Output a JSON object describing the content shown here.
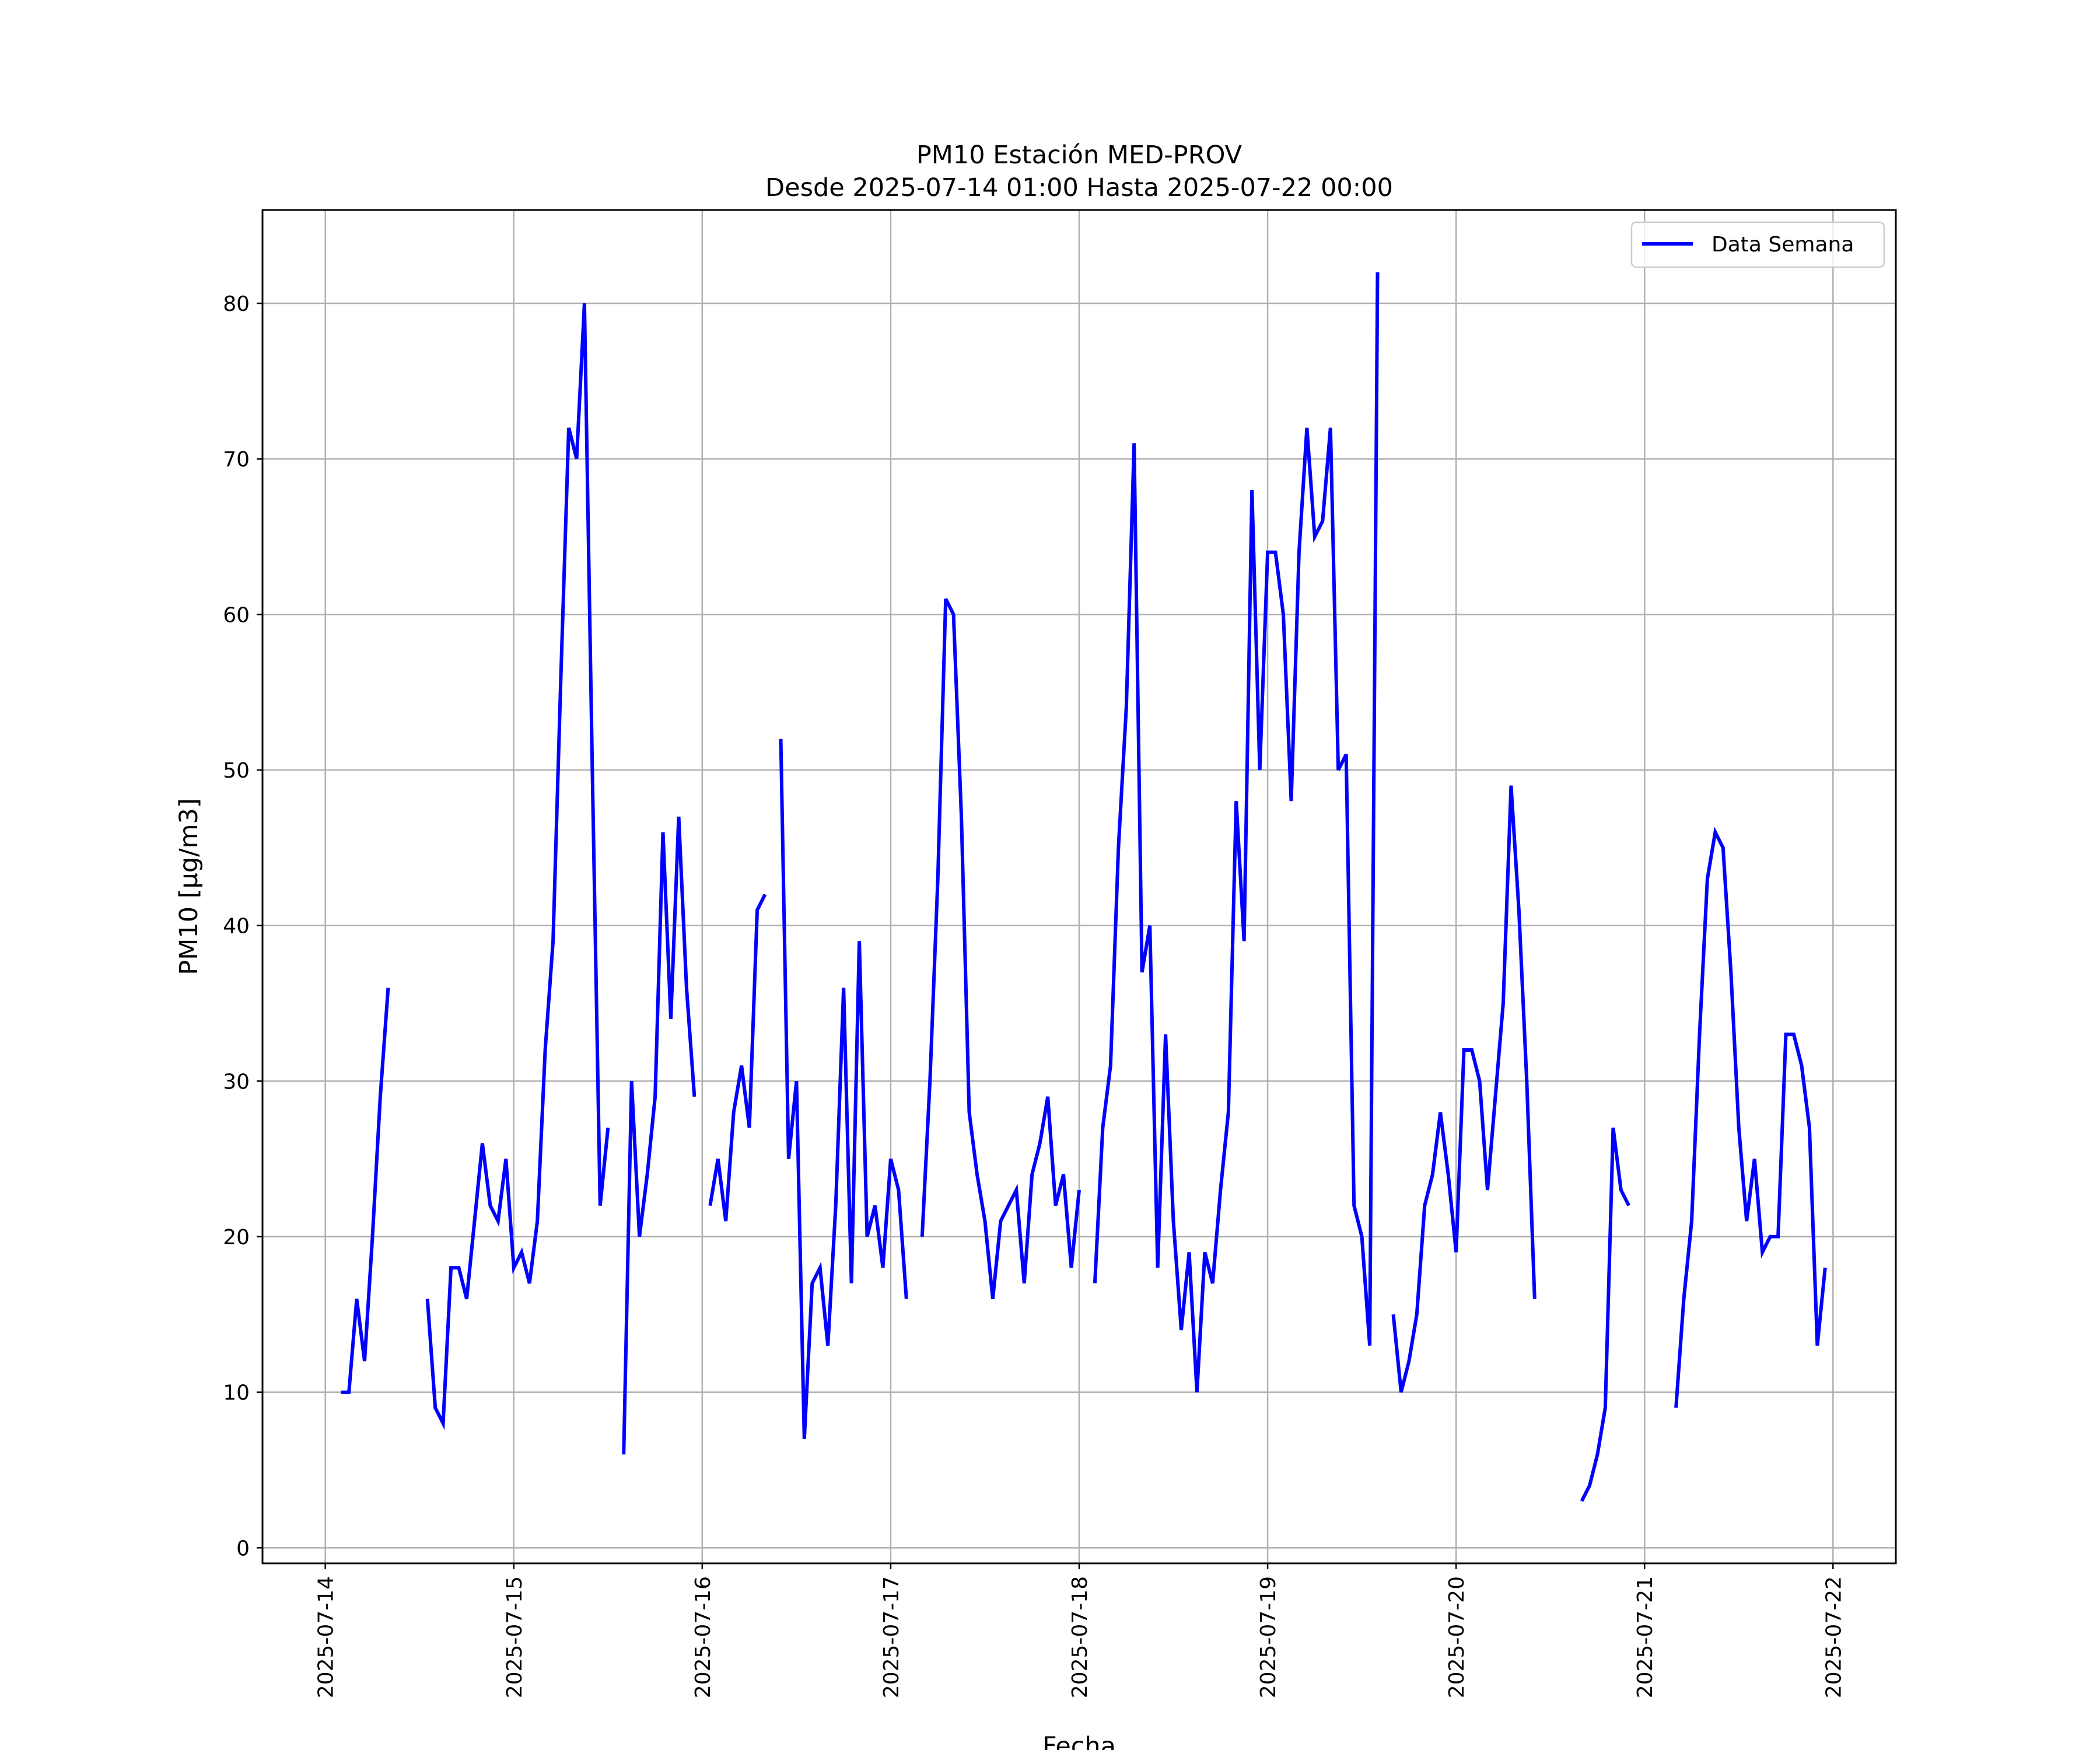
{
  "chart_data": {
    "type": "line",
    "title": "PM10 Estación MED-PROV",
    "subtitle": "Desde 2025-07-14 01:00 Hasta 2025-07-22 00:00",
    "xlabel": "Fecha",
    "ylabel": "PM10 [μg/m3]",
    "x_range": [
      "2025-07-13 16:00",
      "2025-07-22 08:00"
    ],
    "ylim": [
      -1,
      86
    ],
    "x_ticks": [
      "2025-07-14",
      "2025-07-15",
      "2025-07-16",
      "2025-07-17",
      "2025-07-18",
      "2025-07-19",
      "2025-07-20",
      "2025-07-21",
      "2025-07-22"
    ],
    "y_ticks": [
      0,
      10,
      20,
      30,
      40,
      50,
      60,
      70,
      80
    ],
    "grid": true,
    "legend_position": "top-right",
    "colors": {
      "series": "#0000ff",
      "grid": "#b0b0b0",
      "frame": "#000000"
    },
    "series": [
      {
        "name": "Data Semana",
        "segments": [
          [
            [
              "2025-07-14 02:00",
              10
            ],
            [
              "2025-07-14 03:00",
              10
            ],
            [
              "2025-07-14 04:00",
              16
            ],
            [
              "2025-07-14 05:00",
              12
            ],
            [
              "2025-07-14 06:00",
              20
            ],
            [
              "2025-07-14 07:00",
              29
            ],
            [
              "2025-07-14 08:00",
              36
            ]
          ],
          [
            [
              "2025-07-14 13:00",
              16
            ],
            [
              "2025-07-14 14:00",
              9
            ],
            [
              "2025-07-14 15:00",
              8
            ],
            [
              "2025-07-14 16:00",
              18
            ],
            [
              "2025-07-14 17:00",
              18
            ],
            [
              "2025-07-14 18:00",
              16
            ],
            [
              "2025-07-14 19:00",
              21
            ],
            [
              "2025-07-14 20:00",
              26
            ],
            [
              "2025-07-14 21:00",
              22
            ],
            [
              "2025-07-14 22:00",
              21
            ],
            [
              "2025-07-14 23:00",
              25
            ],
            [
              "2025-07-15 00:00",
              18
            ],
            [
              "2025-07-15 01:00",
              19
            ],
            [
              "2025-07-15 02:00",
              17
            ],
            [
              "2025-07-15 03:00",
              21
            ],
            [
              "2025-07-15 04:00",
              32
            ],
            [
              "2025-07-15 05:00",
              39
            ],
            [
              "2025-07-15 06:00",
              56
            ],
            [
              "2025-07-15 07:00",
              72
            ],
            [
              "2025-07-15 08:00",
              70
            ],
            [
              "2025-07-15 09:00",
              80
            ],
            [
              "2025-07-15 10:00",
              50
            ],
            [
              "2025-07-15 11:00",
              22
            ],
            [
              "2025-07-15 12:00",
              27
            ]
          ],
          [
            [
              "2025-07-15 14:00",
              6
            ],
            [
              "2025-07-15 15:00",
              30
            ],
            [
              "2025-07-15 16:00",
              20
            ],
            [
              "2025-07-15 17:00",
              24
            ],
            [
              "2025-07-15 18:00",
              29
            ],
            [
              "2025-07-15 19:00",
              46
            ],
            [
              "2025-07-15 20:00",
              34
            ],
            [
              "2025-07-15 21:00",
              47
            ],
            [
              "2025-07-15 22:00",
              36
            ],
            [
              "2025-07-15 23:00",
              29
            ]
          ],
          [
            [
              "2025-07-16 01:00",
              22
            ],
            [
              "2025-07-16 02:00",
              25
            ],
            [
              "2025-07-16 03:00",
              21
            ],
            [
              "2025-07-16 04:00",
              28
            ],
            [
              "2025-07-16 05:00",
              31
            ],
            [
              "2025-07-16 06:00",
              27
            ],
            [
              "2025-07-16 07:00",
              41
            ],
            [
              "2025-07-16 08:00",
              42
            ]
          ],
          [
            [
              "2025-07-16 10:00",
              52
            ],
            [
              "2025-07-16 11:00",
              25
            ],
            [
              "2025-07-16 12:00",
              30
            ],
            [
              "2025-07-16 13:00",
              7
            ],
            [
              "2025-07-16 14:00",
              17
            ],
            [
              "2025-07-16 15:00",
              18
            ],
            [
              "2025-07-16 16:00",
              13
            ],
            [
              "2025-07-16 17:00",
              22
            ],
            [
              "2025-07-16 18:00",
              36
            ],
            [
              "2025-07-16 19:00",
              17
            ],
            [
              "2025-07-16 20:00",
              39
            ],
            [
              "2025-07-16 21:00",
              20
            ],
            [
              "2025-07-16 22:00",
              22
            ],
            [
              "2025-07-16 23:00",
              18
            ],
            [
              "2025-07-17 00:00",
              25
            ],
            [
              "2025-07-17 01:00",
              23
            ],
            [
              "2025-07-17 02:00",
              16
            ]
          ],
          [
            [
              "2025-07-17 04:00",
              20
            ],
            [
              "2025-07-17 05:00",
              30
            ],
            [
              "2025-07-17 06:00",
              43
            ],
            [
              "2025-07-17 07:00",
              61
            ],
            [
              "2025-07-17 08:00",
              60
            ],
            [
              "2025-07-17 09:00",
              47
            ],
            [
              "2025-07-17 10:00",
              28
            ],
            [
              "2025-07-17 11:00",
              24
            ],
            [
              "2025-07-17 12:00",
              21
            ],
            [
              "2025-07-17 13:00",
              16
            ],
            [
              "2025-07-17 14:00",
              21
            ],
            [
              "2025-07-17 15:00",
              22
            ],
            [
              "2025-07-17 16:00",
              23
            ],
            [
              "2025-07-17 17:00",
              17
            ],
            [
              "2025-07-17 18:00",
              24
            ],
            [
              "2025-07-17 19:00",
              26
            ],
            [
              "2025-07-17 20:00",
              29
            ],
            [
              "2025-07-17 21:00",
              22
            ],
            [
              "2025-07-17 22:00",
              24
            ],
            [
              "2025-07-17 23:00",
              18
            ],
            [
              "2025-07-18 00:00",
              23
            ]
          ],
          [
            [
              "2025-07-18 02:00",
              17
            ],
            [
              "2025-07-18 03:00",
              27
            ],
            [
              "2025-07-18 04:00",
              31
            ],
            [
              "2025-07-18 05:00",
              45
            ],
            [
              "2025-07-18 06:00",
              54
            ],
            [
              "2025-07-18 07:00",
              71
            ],
            [
              "2025-07-18 08:00",
              37
            ],
            [
              "2025-07-18 09:00",
              40
            ],
            [
              "2025-07-18 10:00",
              18
            ],
            [
              "2025-07-18 11:00",
              33
            ],
            [
              "2025-07-18 12:00",
              21
            ],
            [
              "2025-07-18 13:00",
              14
            ],
            [
              "2025-07-18 14:00",
              19
            ],
            [
              "2025-07-18 15:00",
              10
            ],
            [
              "2025-07-18 16:00",
              19
            ],
            [
              "2025-07-18 17:00",
              17
            ],
            [
              "2025-07-18 18:00",
              23
            ],
            [
              "2025-07-18 19:00",
              28
            ],
            [
              "2025-07-18 20:00",
              48
            ],
            [
              "2025-07-18 21:00",
              39
            ],
            [
              "2025-07-18 22:00",
              68
            ],
            [
              "2025-07-18 23:00",
              50
            ],
            [
              "2025-07-19 00:00",
              64
            ],
            [
              "2025-07-19 01:00",
              64
            ],
            [
              "2025-07-19 02:00",
              60
            ],
            [
              "2025-07-19 03:00",
              48
            ],
            [
              "2025-07-19 04:00",
              64
            ],
            [
              "2025-07-19 05:00",
              72
            ],
            [
              "2025-07-19 06:00",
              65
            ],
            [
              "2025-07-19 07:00",
              66
            ],
            [
              "2025-07-19 08:00",
              72
            ],
            [
              "2025-07-19 09:00",
              50
            ],
            [
              "2025-07-19 10:00",
              51
            ],
            [
              "2025-07-19 11:00",
              22
            ],
            [
              "2025-07-19 12:00",
              20
            ],
            [
              "2025-07-19 13:00",
              13
            ],
            [
              "2025-07-19 14:00",
              82
            ]
          ],
          [
            [
              "2025-07-19 16:00",
              15
            ],
            [
              "2025-07-19 17:00",
              10
            ],
            [
              "2025-07-19 18:00",
              12
            ],
            [
              "2025-07-19 19:00",
              15
            ],
            [
              "2025-07-19 20:00",
              22
            ],
            [
              "2025-07-19 21:00",
              24
            ],
            [
              "2025-07-19 22:00",
              28
            ],
            [
              "2025-07-19 23:00",
              24
            ],
            [
              "2025-07-20 00:00",
              19
            ],
            [
              "2025-07-20 01:00",
              32
            ],
            [
              "2025-07-20 02:00",
              32
            ],
            [
              "2025-07-20 03:00",
              30
            ],
            [
              "2025-07-20 04:00",
              23
            ],
            [
              "2025-07-20 05:00",
              29
            ],
            [
              "2025-07-20 06:00",
              35
            ],
            [
              "2025-07-20 07:00",
              49
            ],
            [
              "2025-07-20 08:00",
              41
            ],
            [
              "2025-07-20 09:00",
              30
            ],
            [
              "2025-07-20 10:00",
              16
            ]
          ],
          [
            [
              "2025-07-20 16:00",
              3
            ],
            [
              "2025-07-20 17:00",
              4
            ],
            [
              "2025-07-20 18:00",
              6
            ],
            [
              "2025-07-20 19:00",
              9
            ],
            [
              "2025-07-20 20:00",
              27
            ],
            [
              "2025-07-20 21:00",
              23
            ],
            [
              "2025-07-20 22:00",
              22
            ]
          ],
          [
            [
              "2025-07-21 04:00",
              9
            ],
            [
              "2025-07-21 05:00",
              16
            ],
            [
              "2025-07-21 06:00",
              21
            ],
            [
              "2025-07-21 07:00",
              33
            ],
            [
              "2025-07-21 08:00",
              43
            ],
            [
              "2025-07-21 09:00",
              46
            ],
            [
              "2025-07-21 10:00",
              45
            ],
            [
              "2025-07-21 11:00",
              37
            ],
            [
              "2025-07-21 12:00",
              27
            ],
            [
              "2025-07-21 13:00",
              21
            ],
            [
              "2025-07-21 14:00",
              25
            ],
            [
              "2025-07-21 15:00",
              19
            ],
            [
              "2025-07-21 16:00",
              20
            ],
            [
              "2025-07-21 17:00",
              20
            ],
            [
              "2025-07-21 18:00",
              33
            ],
            [
              "2025-07-21 19:00",
              33
            ],
            [
              "2025-07-21 20:00",
              31
            ],
            [
              "2025-07-21 21:00",
              27
            ],
            [
              "2025-07-21 22:00",
              13
            ],
            [
              "2025-07-21 23:00",
              18
            ]
          ]
        ]
      }
    ]
  }
}
